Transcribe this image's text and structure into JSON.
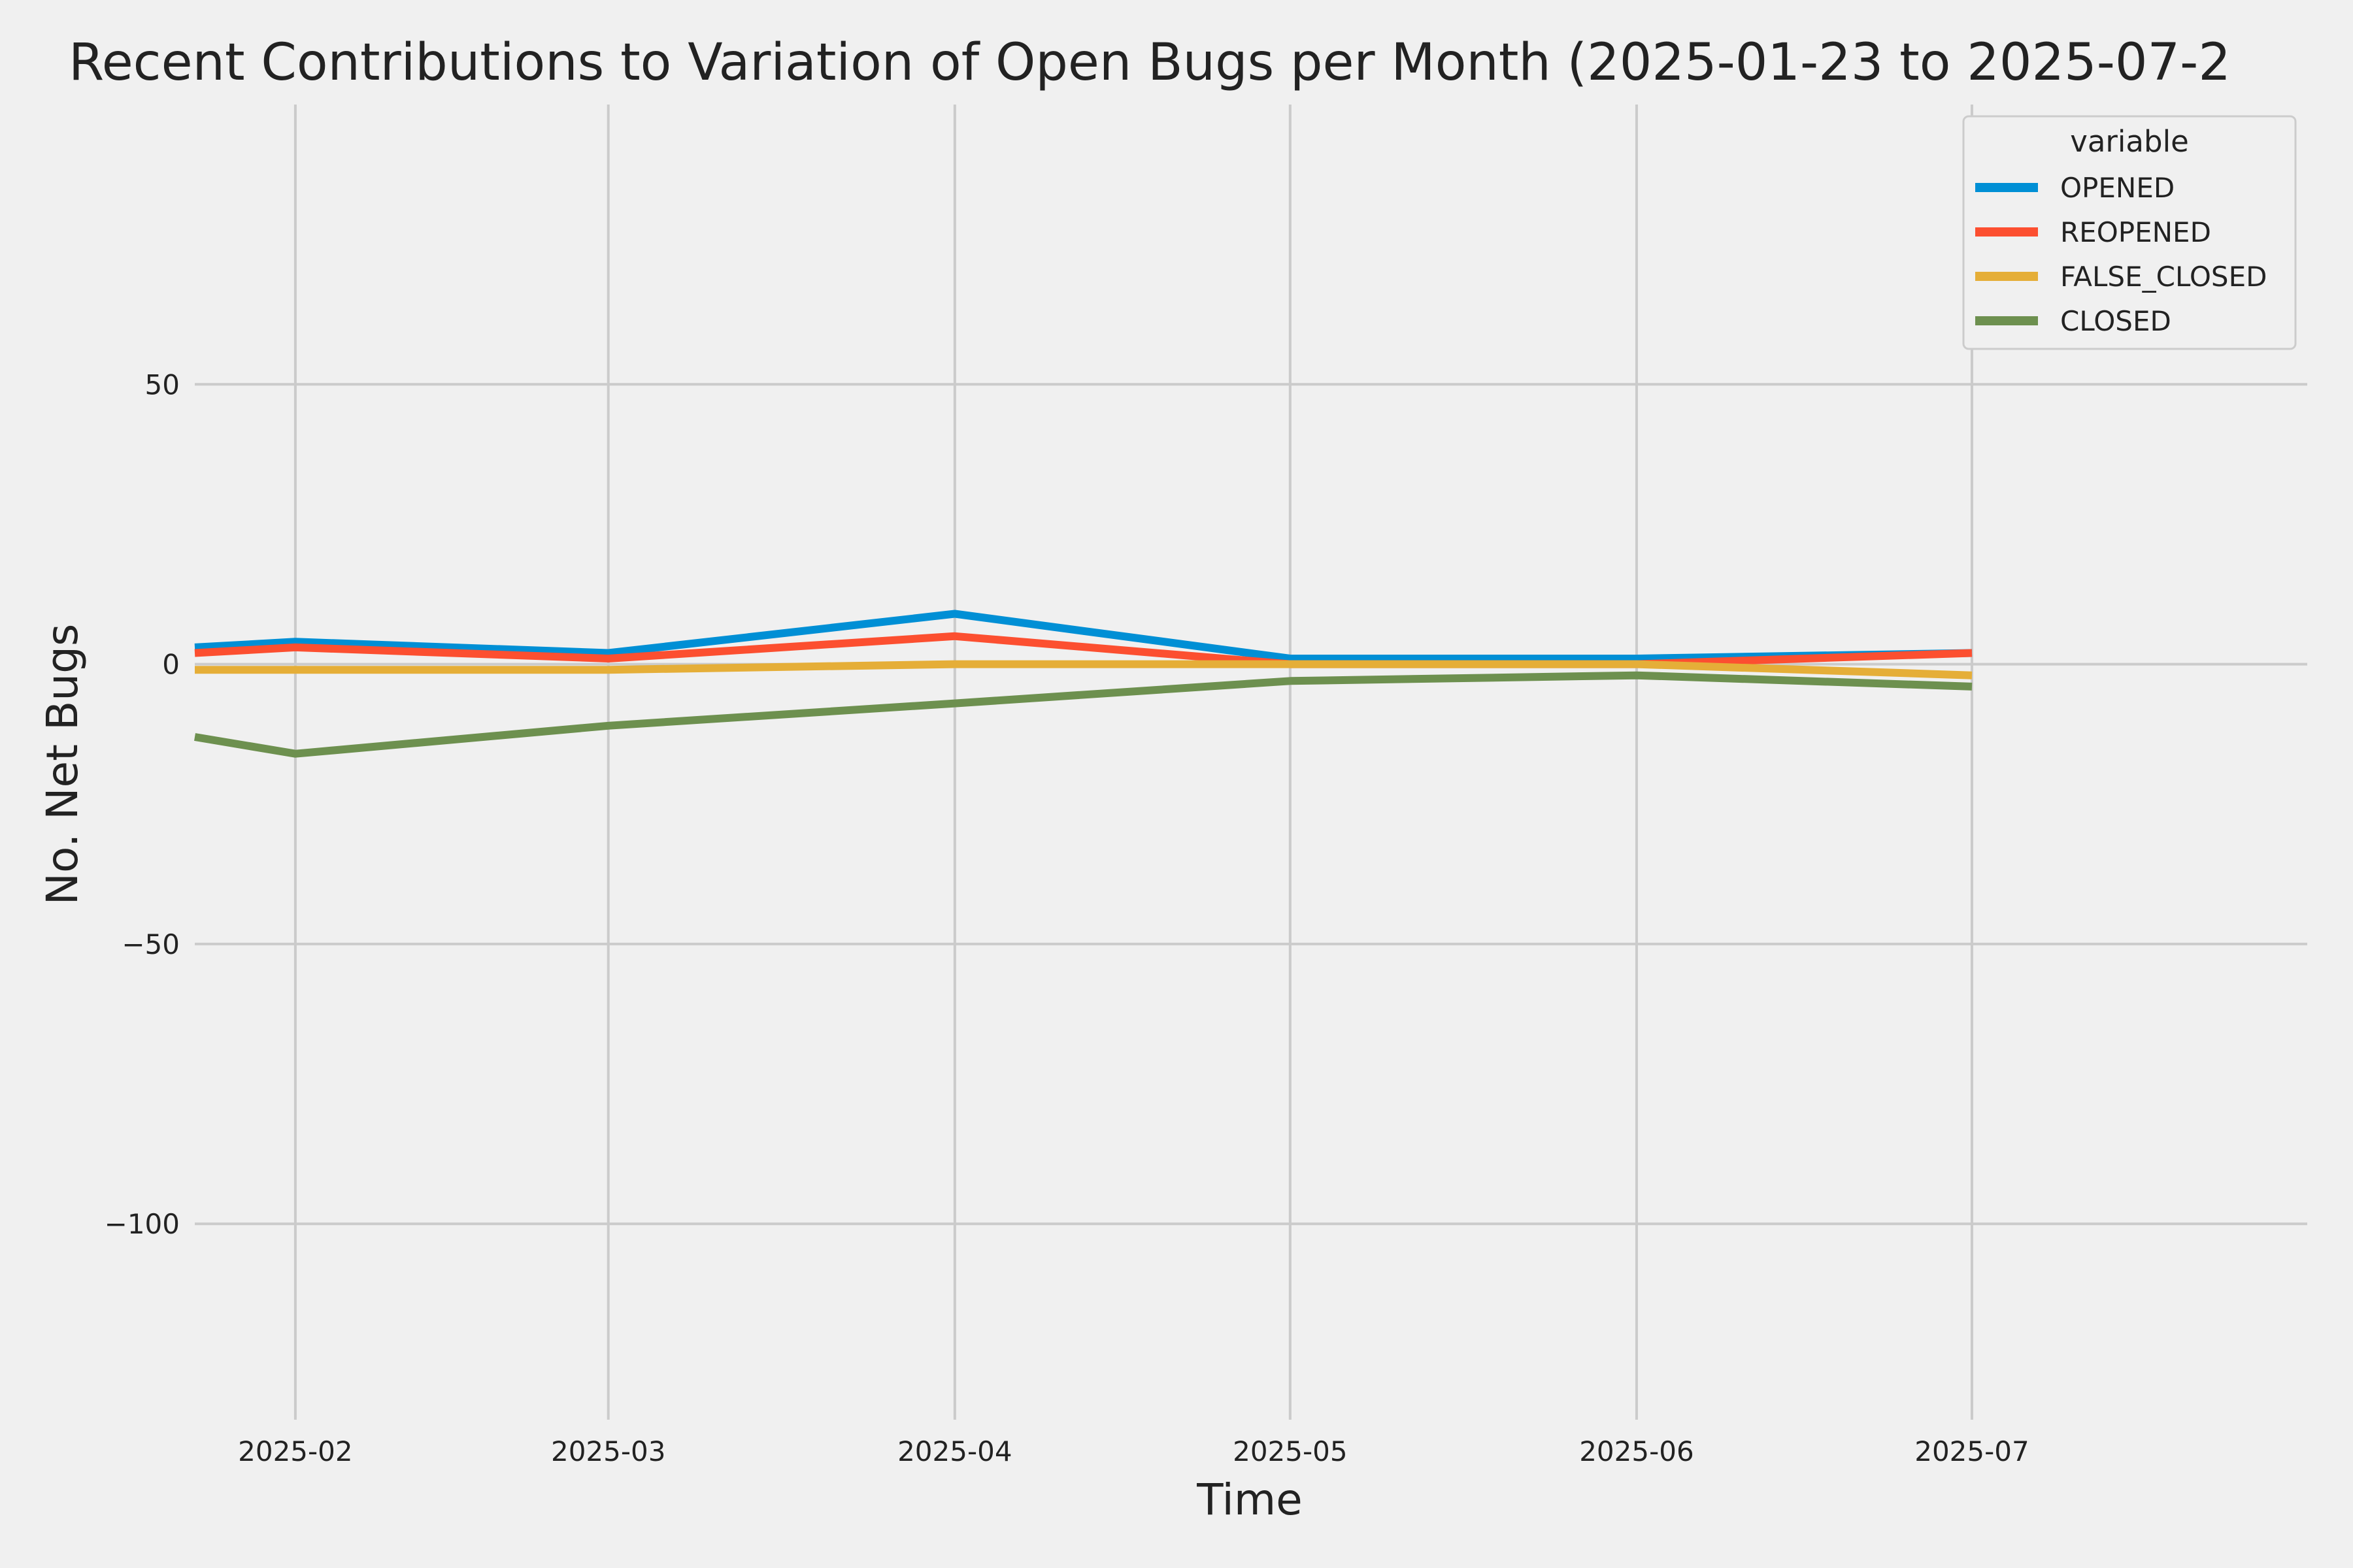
{
  "chart_data": {
    "type": "line",
    "title": "Recent Contributions to Variation of Open Bugs per Month (2025-01-23 to 2025-07-2",
    "xlabel": "Time",
    "ylabel": "No. Net Bugs",
    "x_tick_labels": [
      "2025-02",
      "2025-03",
      "2025-04",
      "2025-05",
      "2025-06",
      "2025-07"
    ],
    "y_ticks": [
      50,
      0,
      -50,
      -100
    ],
    "y_tick_labels": [
      "50",
      "0",
      "−50",
      "−100"
    ],
    "ylim": [
      -135,
      100
    ],
    "xlim": [
      "2025-01-23",
      "2025-07-31"
    ],
    "grid": true,
    "legend": {
      "title": "variable",
      "placement": "top-right"
    },
    "x": [
      "2025-01-23",
      "2025-02-01",
      "2025-03-01",
      "2025-04-01",
      "2025-05-01",
      "2025-06-01",
      "2025-07-01"
    ],
    "series": [
      {
        "name": "OPENED",
        "color": "#008fd5",
        "values": [
          3,
          4,
          2,
          9,
          1,
          1,
          2
        ]
      },
      {
        "name": "REOPENED",
        "color": "#fc4f30",
        "values": [
          2,
          3,
          1,
          5,
          0,
          0,
          2
        ]
      },
      {
        "name": "FALSE_CLOSED",
        "color": "#e5ae38",
        "values": [
          -1,
          -1,
          -1,
          0,
          0,
          0,
          -2
        ]
      },
      {
        "name": "CLOSED",
        "color": "#6d904f",
        "values": [
          -13,
          -16,
          -11,
          -7,
          -3,
          -2,
          -4
        ]
      }
    ]
  }
}
